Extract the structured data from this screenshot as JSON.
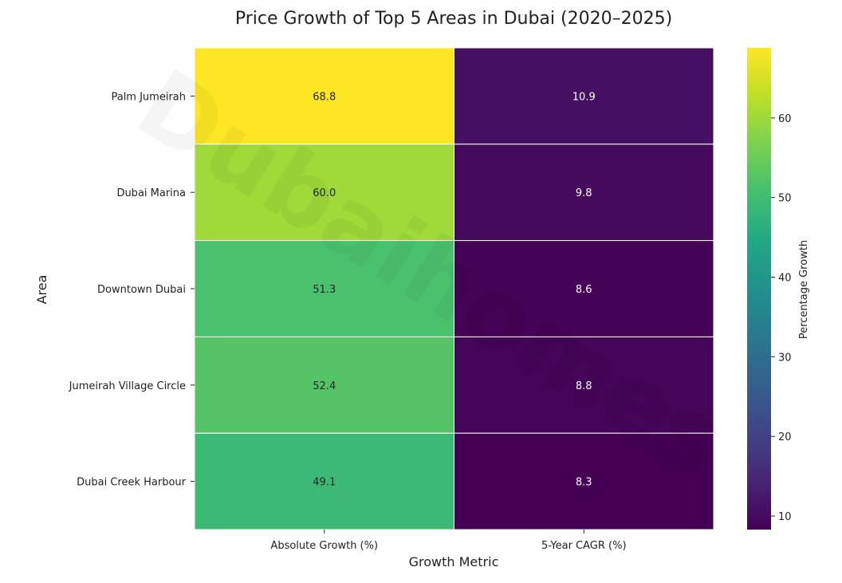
{
  "chart_data": {
    "type": "heatmap",
    "title": "Price Growth of Top 5 Areas in Dubai (2020–2025)",
    "xlabel": "Growth Metric",
    "ylabel": "Area",
    "x_categories": [
      "Absolute Growth (%)",
      "5-Year CAGR (%)"
    ],
    "y_categories": [
      "Palm Jumeirah",
      "Dubai Marina",
      "Downtown Dubai",
      "Jumeirah Village Circle",
      "Dubai Creek Harbour"
    ],
    "values": [
      [
        68.8,
        10.9
      ],
      [
        60.0,
        9.8
      ],
      [
        51.3,
        8.6
      ],
      [
        52.4,
        8.8
      ],
      [
        49.1,
        8.3
      ]
    ],
    "colormap": "viridis",
    "colorbar": {
      "label": "Percentage Growth",
      "vmin": 8.3,
      "vmax": 68.8,
      "ticks": [
        10,
        20,
        30,
        40,
        50,
        60
      ]
    },
    "watermark": "Dubaihomes"
  }
}
